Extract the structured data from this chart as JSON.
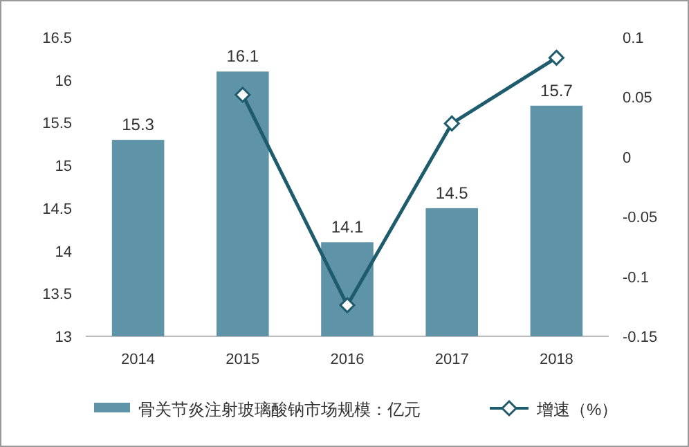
{
  "chart_data": {
    "type": "bar",
    "categories": [
      "2014",
      "2015",
      "2016",
      "2017",
      "2018"
    ],
    "series": [
      {
        "name": "骨关节炎注射玻璃酸钠市场规模：亿元",
        "color": "#5f93a8",
        "values": [
          15.3,
          16.1,
          14.1,
          14.5,
          15.7
        ],
        "value_labels": [
          "15.3",
          "16.1",
          "14.1",
          "14.5",
          "15.7"
        ]
      },
      {
        "name": "增速（%）",
        "type": "line",
        "axis": "y2",
        "color": "#1e5b6c",
        "values": [
          null,
          0.052,
          -0.124,
          0.028,
          0.083
        ]
      }
    ],
    "ylim": [
      13,
      16.5
    ],
    "yticks": [
      13,
      13.5,
      14,
      14.5,
      15,
      15.5,
      16,
      16.5
    ],
    "y2lim": [
      -0.15,
      0.1
    ],
    "y2ticks": [
      -0.15,
      -0.1,
      -0.05,
      0,
      0.05,
      0.1
    ],
    "marker": "diamond",
    "line_style": "solid",
    "legend": "bottom",
    "grid": false
  }
}
